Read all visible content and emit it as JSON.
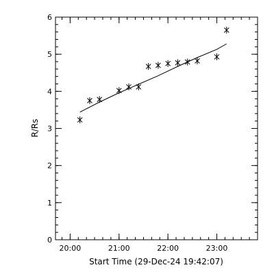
{
  "chart_data": {
    "type": "scatter",
    "title": "",
    "xlabel": "Start Time (29-Dec-24 19:42:07)",
    "ylabel": "R/Rs",
    "xlim": [
      "19:42",
      "23:50"
    ],
    "ylim": [
      0,
      6
    ],
    "x_ticks": [
      "20:00",
      "21:00",
      "22:00",
      "23:00"
    ],
    "y_ticks": [
      "0",
      "1",
      "2",
      "3",
      "4",
      "5",
      "6"
    ],
    "grid": false,
    "series": [
      {
        "marker": "asterisk",
        "points": [
          {
            "x": "20:12",
            "y": 3.23
          },
          {
            "x": "20:24",
            "y": 3.75
          },
          {
            "x": "20:36",
            "y": 3.78
          },
          {
            "x": "21:00",
            "y": 4.02
          },
          {
            "x": "21:12",
            "y": 4.12
          },
          {
            "x": "21:24",
            "y": 4.12
          },
          {
            "x": "21:36",
            "y": 4.67
          },
          {
            "x": "21:48",
            "y": 4.7
          },
          {
            "x": "22:00",
            "y": 4.75
          },
          {
            "x": "22:12",
            "y": 4.77
          },
          {
            "x": "22:24",
            "y": 4.79
          },
          {
            "x": "22:36",
            "y": 4.82
          },
          {
            "x": "23:00",
            "y": 4.93
          },
          {
            "x": "23:12",
            "y": 5.65
          }
        ]
      },
      {
        "style": "line",
        "points": [
          {
            "x": "20:12",
            "y": 3.44
          },
          {
            "x": "20:36",
            "y": 3.71
          },
          {
            "x": "21:00",
            "y": 3.96
          },
          {
            "x": "21:24",
            "y": 4.19
          },
          {
            "x": "21:48",
            "y": 4.42
          },
          {
            "x": "22:12",
            "y": 4.67
          },
          {
            "x": "22:36",
            "y": 4.91
          },
          {
            "x": "23:00",
            "y": 5.13
          },
          {
            "x": "23:12",
            "y": 5.28
          }
        ]
      }
    ]
  }
}
